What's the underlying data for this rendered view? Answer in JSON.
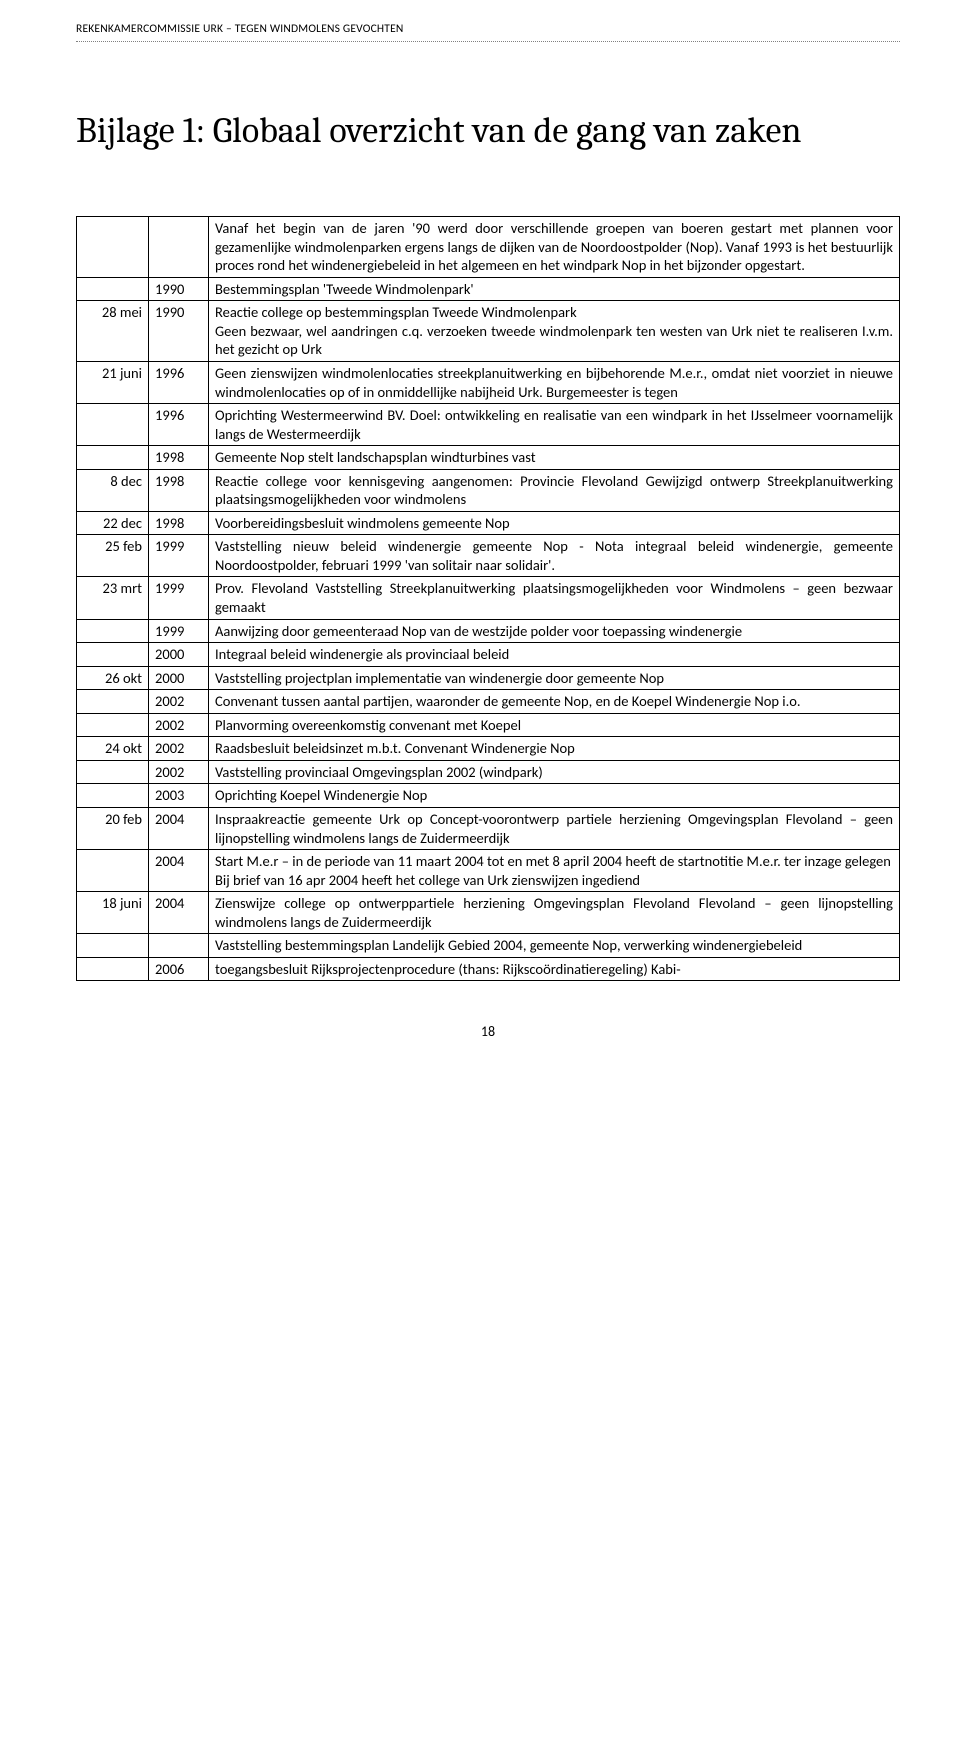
{
  "header": {
    "running": "REKENKAMERCOMMISSIE URK – TEGEN WINDMOLENS GEVOCHTEN"
  },
  "title": "Bijlage 1: Globaal overzicht van de gang van zaken",
  "table": {
    "rows": [
      {
        "date": "",
        "year": "",
        "desc": "Vanaf het begin van de jaren '90 werd door verschillende groepen van boeren gestart met plannen voor gezamenlijke windmolenparken ergens langs de dijken van de Noordoostpolder (Nop). Vanaf 1993 is het bestuurlijk proces rond het windenergiebeleid in het algemeen en het windpark Nop in het bijzonder opgestart."
      },
      {
        "date": "",
        "year": "1990",
        "desc": "Bestemmingsplan 'Tweede Windmolenpark'"
      },
      {
        "date": "28 mei",
        "year": "1990",
        "desc": "Reactie college op bestemmingsplan Tweede Windmolenpark\nGeen bezwaar, wel aandringen c.q. verzoeken tweede windmolenpark ten westen van Urk niet te realiseren I.v.m. het gezicht op Urk"
      },
      {
        "date": "21 juni",
        "year": "1996",
        "desc": "Geen zienswijzen windmolenlocaties streekplanuitwerking en bijbehorende M.e.r., omdat niet voorziet in nieuwe windmolenlocaties op of in onmiddellijke nabijheid Urk. Burgemeester is tegen"
      },
      {
        "date": "",
        "year": "1996",
        "desc": "Oprichting Westermeerwind BV. Doel: ontwikkeling en realisatie van een windpark in het IJsselmeer voornamelijk langs de Westermeerdijk"
      },
      {
        "date": "",
        "year": "1998",
        "desc": "Gemeente Nop stelt landschapsplan windturbines vast"
      },
      {
        "date": "8 dec",
        "year": "1998",
        "desc": "Reactie college voor kennisgeving aangenomen: Provincie Flevoland Gewijzigd ontwerp Streekplanuitwerking plaatsingsmogelijkheden voor windmolens"
      },
      {
        "date": "22 dec",
        "year": "1998",
        "desc": "Voorbereidingsbesluit windmolens gemeente Nop"
      },
      {
        "date": "25 feb",
        "year": "1999",
        "desc": "Vaststelling nieuw beleid windenergie gemeente Nop - Nota integraal beleid windenergie, gemeente Noordoostpolder, februari 1999 'van solitair naar solidair'."
      },
      {
        "date": "23 mrt",
        "year": "1999",
        "desc": "Prov. Flevoland Vaststelling Streekplanuitwerking plaatsingsmogelijkheden voor Windmolens – geen bezwaar gemaakt"
      },
      {
        "date": "",
        "year": "1999",
        "desc": "Aanwijzing door gemeenteraad Nop van de westzijde polder voor toepassing windenergie"
      },
      {
        "date": "",
        "year": "2000",
        "desc": "Integraal beleid windenergie als provinciaal beleid"
      },
      {
        "date": "26 okt",
        "year": "2000",
        "desc": "Vaststelling projectplan implementatie van windenergie door gemeente Nop"
      },
      {
        "date": "",
        "year": "2002",
        "desc": "Convenant tussen aantal partijen, waaronder de gemeente Nop, en de Koepel Windenergie Nop i.o."
      },
      {
        "date": "",
        "year": "2002",
        "desc": "Planvorming overeenkomstig convenant met Koepel"
      },
      {
        "date": "24 okt",
        "year": "2002",
        "desc": "Raadsbesluit beleidsinzet m.b.t. Convenant Windenergie Nop"
      },
      {
        "date": "",
        "year": "2002",
        "desc": "Vaststelling provinciaal Omgevingsplan 2002 (windpark)"
      },
      {
        "date": "",
        "year": "2003",
        "desc": "Oprichting Koepel Windenergie Nop"
      },
      {
        "date": "20 feb",
        "year": "2004",
        "desc": "Inspraakreactie gemeente Urk op Concept-voorontwerp partiele herziening Omgevingsplan Flevoland – geen lijnopstelling windmolens langs de Zuidermeerdijk"
      },
      {
        "date": "",
        "year": "2004",
        "desc": "Start M.e.r – in de periode van 11 maart 2004 tot en met 8 april 2004 heeft de startnotitie M.e.r. ter inzage gelegen\nBij brief van 16 apr 2004 heeft het college van Urk zienswijzen ingediend"
      },
      {
        "date": "18 juni",
        "year": "2004",
        "desc": "Zienswijze college op ontwerppartiele herziening Omgevingsplan Flevoland Flevoland – geen lijnopstelling windmolens langs de Zuidermeerdijk"
      },
      {
        "date": "",
        "year": "",
        "desc": "Vaststelling bestemmingsplan Landelijk Gebied 2004, gemeente Nop, verwerking windenergiebeleid"
      },
      {
        "date": "",
        "year": "2006",
        "desc": "toegangsbesluit Rijksprojectenprocedure (thans: Rijkscoördinatieregeling) Kabi-"
      }
    ]
  },
  "page_number": "18",
  "colors": {
    "text": "#000000",
    "rule": "#808080",
    "border": "#000000",
    "background": "#ffffff"
  },
  "typography": {
    "body_font": "Calibri",
    "title_font": "Cambria",
    "title_size_pt": 27,
    "body_size_pt": 11,
    "header_size_pt": 9
  }
}
